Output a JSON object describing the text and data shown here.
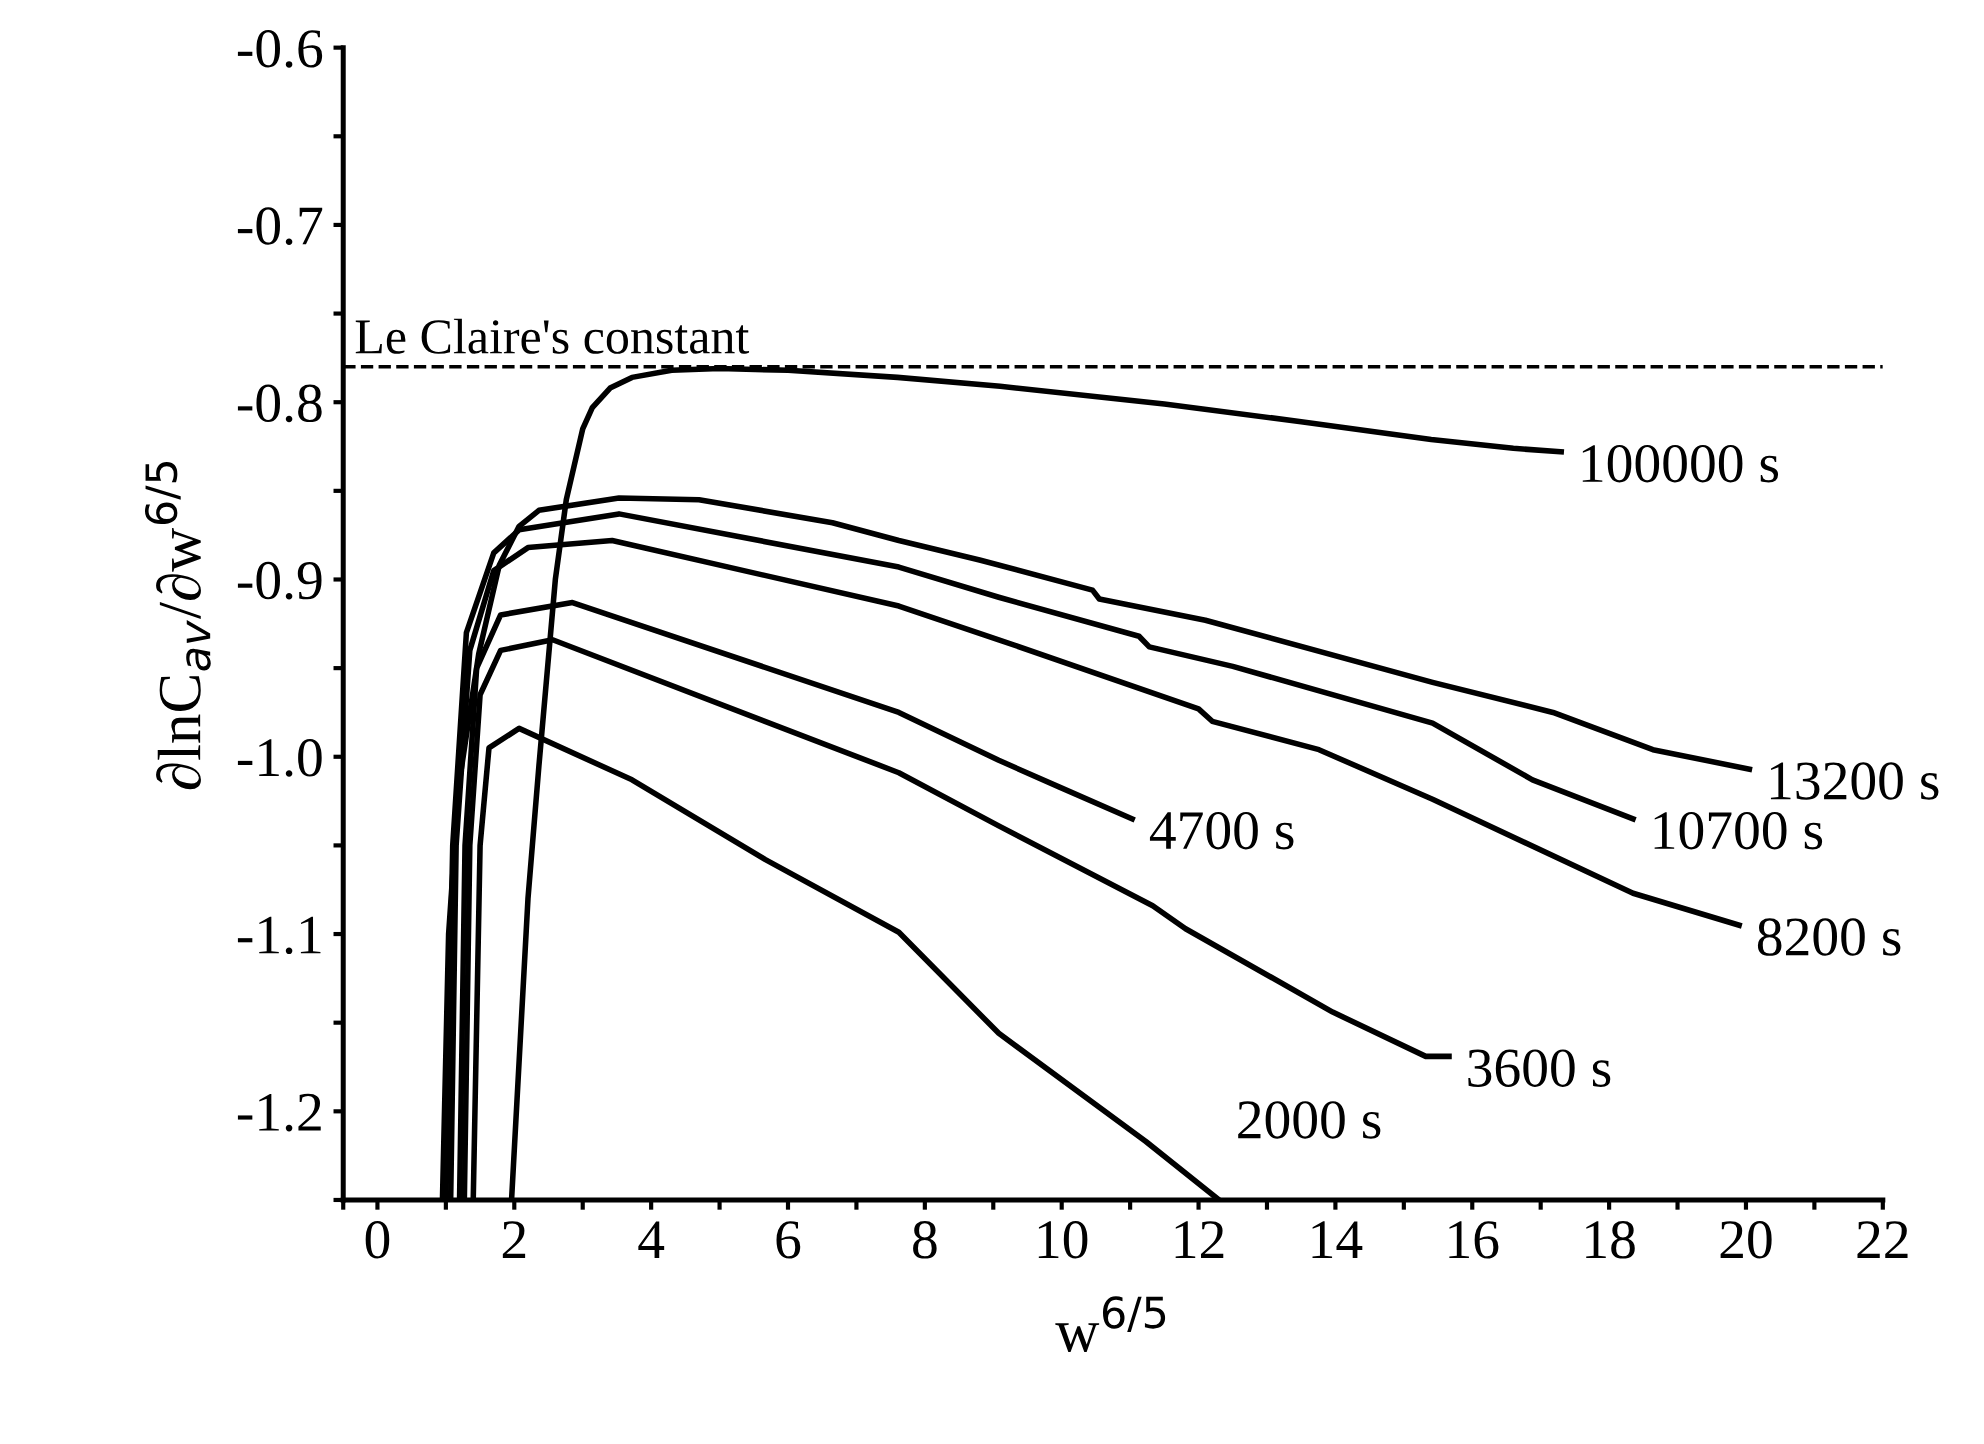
{
  "chart_data": {
    "type": "line",
    "xlabel": "w$^{6/5}$",
    "ylabel": "∂lnC$_{av}$/∂w$^{6/5}$",
    "xlim": [
      -0.5,
      22
    ],
    "ylim": [
      -1.25,
      -0.6
    ],
    "xticks": [
      {
        "value": -0.5,
        "label": null
      },
      0,
      {
        "value": 1,
        "label": null
      },
      2,
      {
        "value": 3,
        "label": null
      },
      4,
      {
        "value": 5,
        "label": null
      },
      6,
      {
        "value": 7,
        "label": null
      },
      8,
      {
        "value": 9,
        "label": null
      },
      10,
      {
        "value": 11,
        "label": null
      },
      12,
      {
        "value": 13,
        "label": null
      },
      14,
      {
        "value": 15,
        "label": null
      },
      16,
      {
        "value": 17,
        "label": null
      },
      18,
      {
        "value": 19,
        "label": null
      },
      20,
      {
        "value": 21,
        "label": null
      },
      22
    ],
    "yticks": [
      {
        "value": -1.25,
        "label": null
      },
      {
        "value": -1.2,
        "label": "-1.2"
      },
      {
        "value": -1.15,
        "label": null
      },
      {
        "value": -1.1,
        "label": "-1.1"
      },
      {
        "value": -1.05,
        "label": null
      },
      {
        "value": -1.0,
        "label": "-1.0"
      },
      {
        "value": -0.95,
        "label": null
      },
      {
        "value": -0.9,
        "label": "-0.9"
      },
      {
        "value": -0.85,
        "label": null
      },
      {
        "value": -0.8,
        "label": "-0.8"
      },
      {
        "value": -0.75,
        "label": null
      },
      {
        "value": -0.7,
        "label": "-0.7"
      },
      {
        "value": -0.65,
        "label": null
      },
      {
        "value": -0.6,
        "label": "-0.6"
      }
    ],
    "grid": false,
    "legend": false,
    "marker": "none",
    "line_style": "solid",
    "ref_lines": [
      {
        "axis": "y",
        "value": -0.78,
        "label": "Le Claire's constant",
        "color": "#000000",
        "line_style": "dashed"
      }
    ],
    "series": [
      {
        "name": "100000 s",
        "color": "#000000",
        "x": [
          1.96,
          2.2,
          2.36,
          2.6,
          2.76,
          3.0,
          3.14,
          3.4,
          3.72,
          4.3,
          5.0,
          6.0,
          7.6,
          9.1,
          11.5,
          13.5,
          15.4,
          16.6,
          17.3
        ],
        "values": [
          -1.25,
          -1.08,
          -1.005,
          -0.9,
          -0.855,
          -0.815,
          -0.803,
          -0.792,
          -0.786,
          -0.782,
          -0.781,
          -0.782,
          -0.786,
          -0.791,
          -0.801,
          -0.811,
          -0.821,
          -0.826,
          -0.828
        ]
      },
      {
        "name": "13200 s",
        "color": "#000000",
        "x": [
          0.95,
          1.04,
          1.19,
          1.48,
          1.78,
          2.07,
          2.36,
          3.53,
          4.7,
          6.65,
          7.62,
          8.8,
          10.45,
          10.55,
          12.1,
          15.42,
          17.18,
          18.64,
          20.05
        ],
        "values": [
          -1.25,
          -1.1,
          -1.016,
          -0.942,
          -0.892,
          -0.87,
          -0.861,
          -0.854,
          -0.855,
          -0.868,
          -0.878,
          -0.889,
          -0.906,
          -0.911,
          -0.923,
          -0.958,
          -0.975,
          -0.996,
          -1.007
        ]
      },
      {
        "name": "10700 s",
        "color": "#000000",
        "x": [
          1.0,
          1.1,
          1.3,
          1.7,
          2.07,
          3.53,
          7.62,
          9.08,
          11.13,
          11.28,
          12.5,
          15.42,
          16.88,
          18.35
        ],
        "values": [
          -1.25,
          -1.05,
          -0.93,
          -0.885,
          -0.872,
          -0.863,
          -0.893,
          -0.91,
          -0.932,
          -0.938,
          -0.949,
          -0.981,
          -1.013,
          -1.035
        ]
      },
      {
        "name": "8200 s",
        "color": "#000000",
        "x": [
          1.07,
          1.15,
          1.35,
          1.7,
          2.2,
          3.43,
          7.62,
          9.08,
          12.0,
          12.2,
          13.76,
          15.42,
          18.35,
          19.9
        ],
        "values": [
          -1.25,
          -1.05,
          -0.94,
          -0.895,
          -0.882,
          -0.878,
          -0.915,
          -0.934,
          -0.973,
          -0.98,
          -0.996,
          -1.024,
          -1.077,
          -1.095
        ]
      },
      {
        "name": "4700 s",
        "color": "#000000",
        "x": [
          1.2,
          1.28,
          1.45,
          1.8,
          2.85,
          7.62,
          9.08,
          9.96,
          11.03
        ],
        "values": [
          -1.25,
          -1.05,
          -0.95,
          -0.92,
          -0.913,
          -0.975,
          -1.002,
          -1.017,
          -1.035
        ]
      },
      {
        "name": "3600 s",
        "color": "#000000",
        "x": [
          1.27,
          1.35,
          1.5,
          1.8,
          2.56,
          7.62,
          9.08,
          11.33,
          11.81,
          13.96,
          15.32,
          15.66
        ],
        "values": [
          -1.25,
          -1.05,
          -0.965,
          -0.94,
          -0.934,
          -1.009,
          -1.039,
          -1.084,
          -1.097,
          -1.144,
          -1.169,
          -1.169
        ]
      },
      {
        "name": "2000 s",
        "color": "#000000",
        "x": [
          1.4,
          1.5,
          1.63,
          2.07,
          3.72,
          5.67,
          7.62,
          9.08,
          11.23,
          12.3
        ],
        "values": [
          -1.25,
          -1.05,
          -0.995,
          -0.984,
          -1.013,
          -1.058,
          -1.099,
          -1.156,
          -1.217,
          -1.25
        ]
      }
    ]
  }
}
